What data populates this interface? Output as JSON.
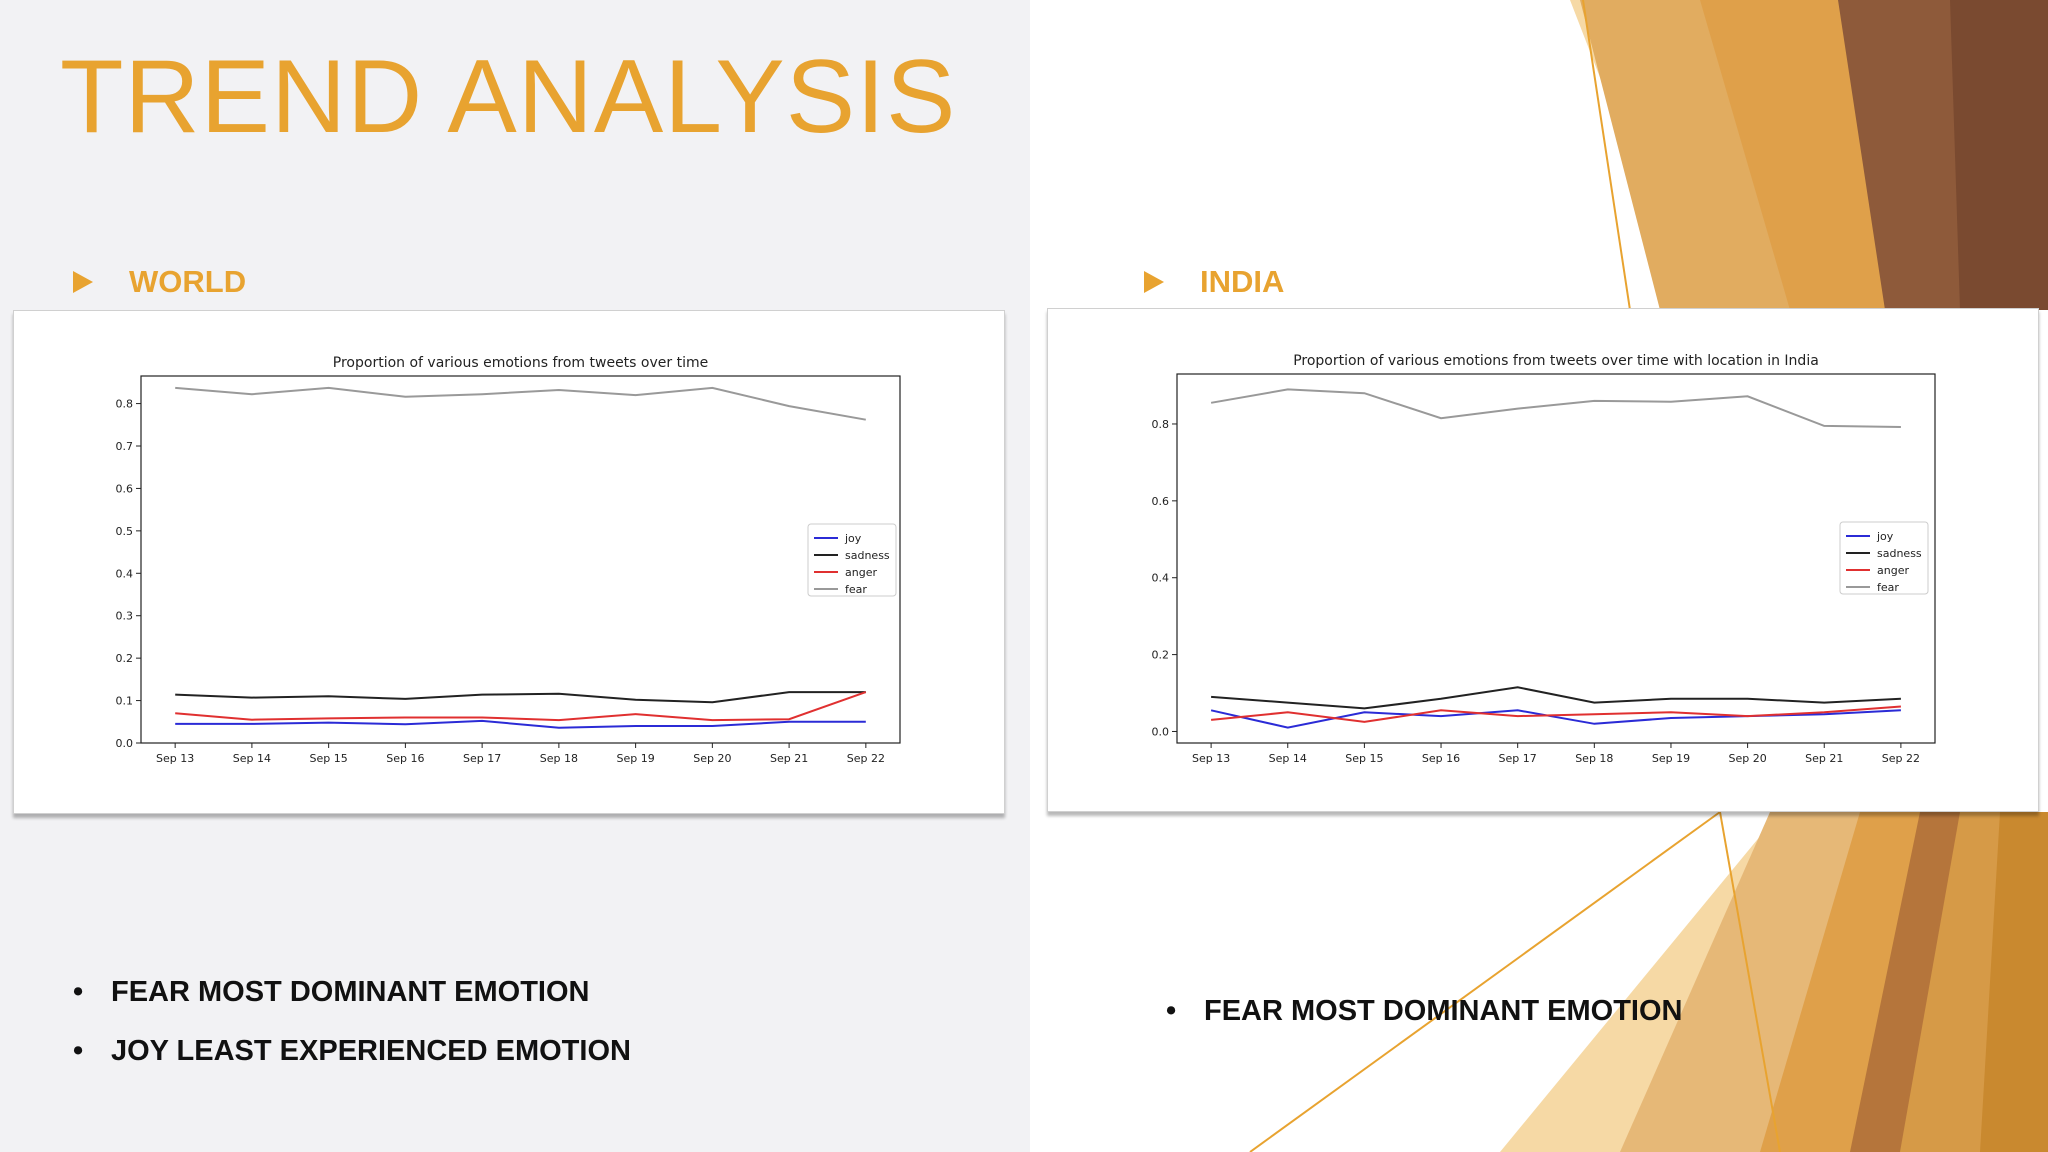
{
  "slide": {
    "title": "TREND ANALYSIS",
    "colors": {
      "accent": "#e8a330",
      "left_bg": "#f2f2f4",
      "text": "#111111"
    },
    "icons": {
      "section_marker": "triangle-right-icon",
      "bullet": "bullet-dot-icon"
    }
  },
  "sections": [
    {
      "label": "WORLD",
      "bullets": [
        "FEAR MOST DOMINANT EMOTION",
        "JOY LEAST EXPERIENCED EMOTION"
      ]
    },
    {
      "label": "INDIA",
      "bullets": [
        "FEAR MOST DOMINANT EMOTION"
      ]
    }
  ],
  "chart_data": [
    {
      "type": "line",
      "title": "Proportion of various emotions from tweets over time",
      "xlabel": "",
      "ylabel": "",
      "categories": [
        "Sep 13",
        "Sep 14",
        "Sep 15",
        "Sep 16",
        "Sep 17",
        "Sep 18",
        "Sep 19",
        "Sep 20",
        "Sep 21",
        "Sep 22"
      ],
      "ylim": [
        0.0,
        0.865
      ],
      "yticks": [
        0.0,
        0.1,
        0.2,
        0.3,
        0.4,
        0.5,
        0.6,
        0.7,
        0.8
      ],
      "legend": "center-right",
      "grid": false,
      "series": [
        {
          "name": "joy",
          "color": "#2b2bd6",
          "values": [
            0.045,
            0.045,
            0.048,
            0.044,
            0.052,
            0.036,
            0.04,
            0.04,
            0.05,
            0.05
          ]
        },
        {
          "name": "sadness",
          "color": "#222222",
          "values": [
            0.114,
            0.107,
            0.11,
            0.104,
            0.114,
            0.116,
            0.102,
            0.096,
            0.12,
            0.12
          ]
        },
        {
          "name": "anger",
          "color": "#e03030",
          "values": [
            0.07,
            0.055,
            0.058,
            0.06,
            0.06,
            0.054,
            0.068,
            0.054,
            0.056,
            0.12
          ]
        },
        {
          "name": "fear",
          "color": "#999999",
          "values": [
            0.837,
            0.822,
            0.837,
            0.816,
            0.822,
            0.832,
            0.82,
            0.837,
            0.794,
            0.762
          ]
        }
      ]
    },
    {
      "type": "line",
      "title": "Proportion of various emotions from tweets over time with location in India",
      "xlabel": "",
      "ylabel": "",
      "categories": [
        "Sep 13",
        "Sep 14",
        "Sep 15",
        "Sep 16",
        "Sep 17",
        "Sep 18",
        "Sep 19",
        "Sep 20",
        "Sep 21",
        "Sep 22"
      ],
      "ylim": [
        -0.03,
        0.93
      ],
      "yticks": [
        0.0,
        0.2,
        0.4,
        0.6,
        0.8
      ],
      "legend": "center-right",
      "grid": false,
      "series": [
        {
          "name": "joy",
          "color": "#2b2bd6",
          "values": [
            0.055,
            0.01,
            0.05,
            0.04,
            0.055,
            0.02,
            0.035,
            0.04,
            0.045,
            0.055
          ]
        },
        {
          "name": "sadness",
          "color": "#222222",
          "values": [
            0.09,
            0.075,
            0.06,
            0.085,
            0.115,
            0.075,
            0.085,
            0.085,
            0.075,
            0.085
          ]
        },
        {
          "name": "anger",
          "color": "#e03030",
          "values": [
            0.03,
            0.05,
            0.025,
            0.055,
            0.04,
            0.045,
            0.05,
            0.04,
            0.05,
            0.065
          ]
        },
        {
          "name": "fear",
          "color": "#999999",
          "values": [
            0.855,
            0.89,
            0.88,
            0.815,
            0.84,
            0.86,
            0.858,
            0.872,
            0.795,
            0.792
          ]
        }
      ]
    }
  ]
}
